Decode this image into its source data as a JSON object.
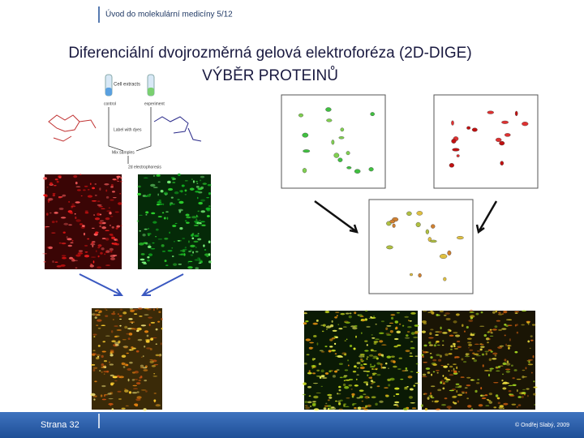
{
  "header": {
    "course": "Úvod do molekulární medicíny 5/12"
  },
  "title": {
    "line1": "Diferenciální dvojrozměrná gelová elektroforéza (2D-DIGE)",
    "line2": "VÝBĚR PROTEINŮ"
  },
  "scheme": {
    "extracts": "Cell extracts",
    "control": "control",
    "experiment": "experiment",
    "label": "Label with dyes",
    "mix": "Mix samples",
    "electrophoresis": "2d electrophoresis"
  },
  "footer": {
    "page": "Strana 32",
    "copyright": "© Ondřej Slabý, 2009"
  }
}
